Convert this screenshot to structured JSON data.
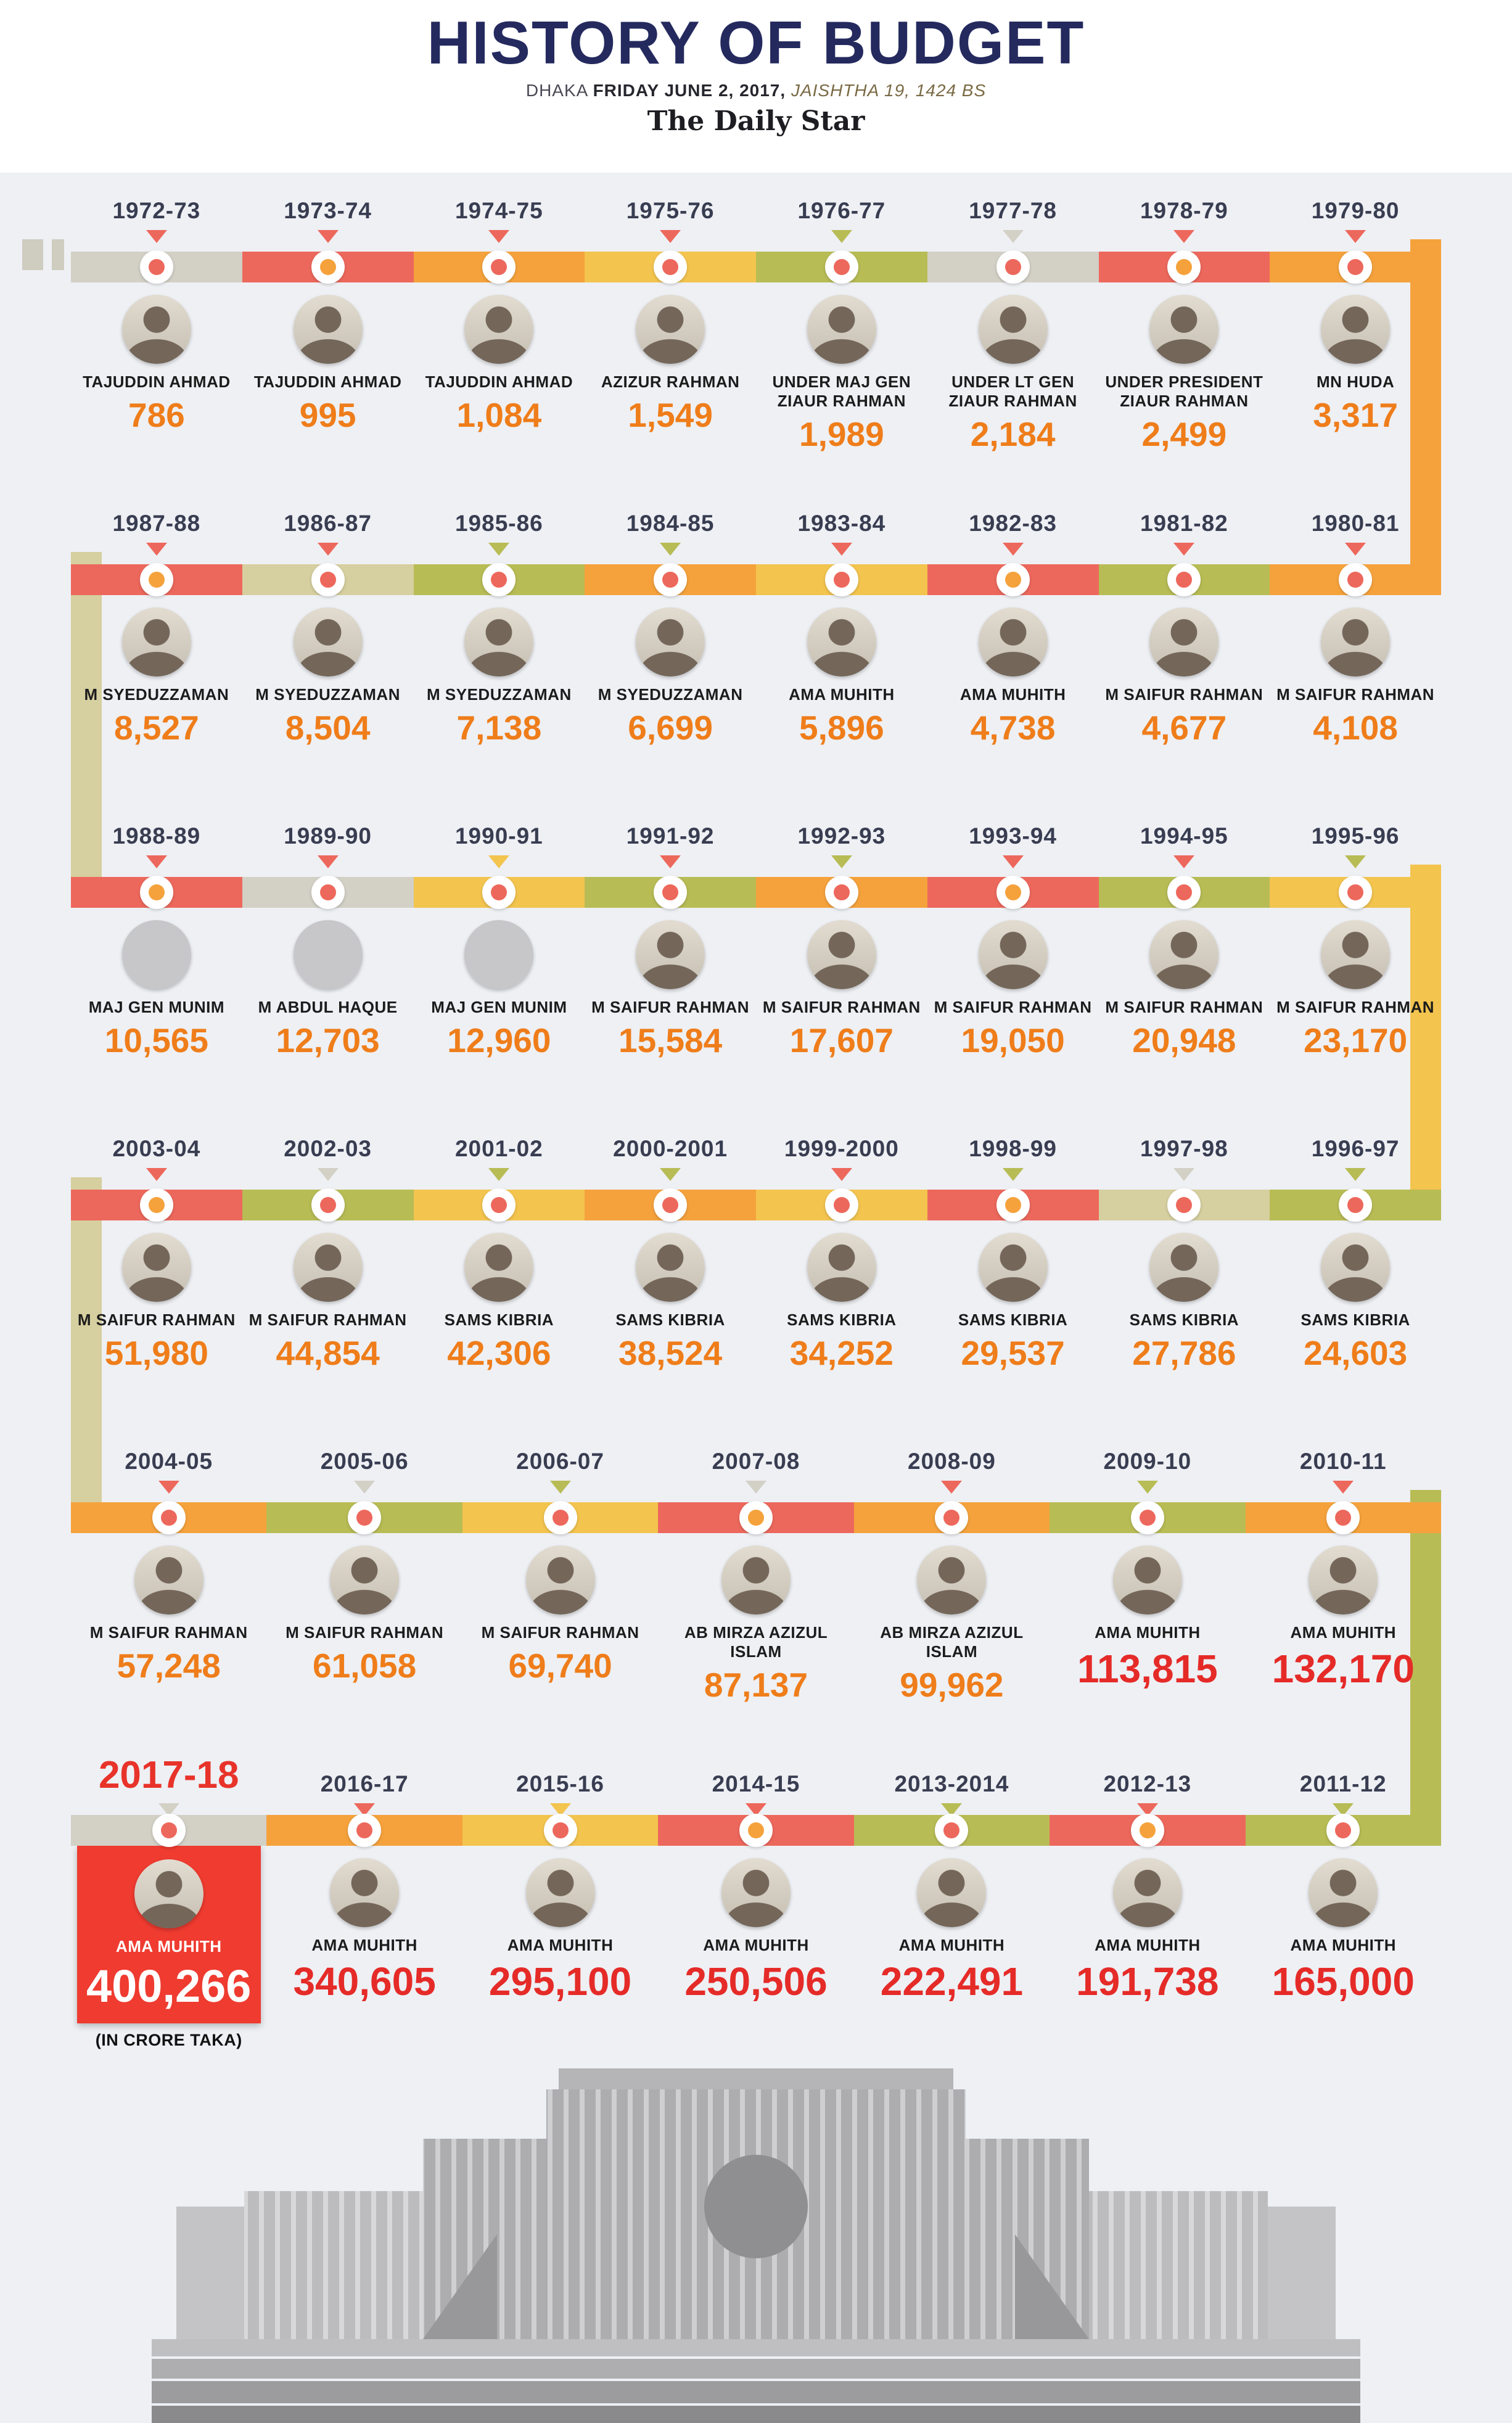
{
  "palette": {
    "red": "#ed685c",
    "orange": "#f5a23c",
    "yellow": "#f3c44e",
    "olive": "#b8bc55",
    "tan": "#d6cf9f",
    "gray": "#d3d0c6",
    "accent_red": "#e8332a",
    "amount_orange": "#ef7d1a",
    "amount_red": "#e52b28",
    "highlight_box": "#ef3b30",
    "title_navy": "#242a5e"
  },
  "header": {
    "title": "HISTORY OF BUDGET",
    "dateline_city": "DHAKA",
    "dateline_date": "FRIDAY JUNE 2, 2017,",
    "dateline_bs": "JAISHTHA 19, 1424 BS",
    "publication": "The Daily Star"
  },
  "connectors": [
    {
      "side": "right",
      "color": "orange"
    },
    {
      "side": "left",
      "color": "tan"
    },
    {
      "side": "right",
      "color": "yellow"
    },
    {
      "side": "left",
      "color": "tan"
    },
    {
      "side": "right",
      "color": "olive"
    }
  ],
  "rows": [
    {
      "direction": "ltr",
      "items": [
        {
          "year": "1972-73",
          "minister": "TAJUDDIN AHMAD",
          "amount": "786",
          "seg": "gray",
          "dot": "red",
          "tri": "red"
        },
        {
          "year": "1973-74",
          "minister": "TAJUDDIN AHMAD",
          "amount": "995",
          "seg": "red",
          "dot": "orange",
          "tri": "red"
        },
        {
          "year": "1974-75",
          "minister": "TAJUDDIN AHMAD",
          "amount": "1,084",
          "seg": "orange",
          "dot": "red",
          "tri": "red"
        },
        {
          "year": "1975-76",
          "minister": "AZIZUR RAHMAN",
          "amount": "1,549",
          "seg": "yellow",
          "dot": "red",
          "tri": "red"
        },
        {
          "year": "1976-77",
          "minister": "UNDER MAJ GEN ZIAUR RAHMAN",
          "amount": "1,989",
          "seg": "olive",
          "dot": "red",
          "tri": "olive"
        },
        {
          "year": "1977-78",
          "minister": "UNDER LT GEN ZIAUR RAHMAN",
          "amount": "2,184",
          "seg": "gray",
          "dot": "red",
          "tri": "gray"
        },
        {
          "year": "1978-79",
          "minister": "UNDER PRESIDENT ZIAUR RAHMAN",
          "amount": "2,499",
          "seg": "red",
          "dot": "orange",
          "tri": "red"
        },
        {
          "year": "1979-80",
          "minister": "MN HUDA",
          "amount": "3,317",
          "seg": "orange",
          "dot": "red",
          "tri": "red"
        }
      ]
    },
    {
      "direction": "rtl",
      "items": [
        {
          "year": "1987-88",
          "minister": "M SYEDUZZAMAN",
          "amount": "8,527",
          "seg": "red",
          "dot": "orange",
          "tri": "red"
        },
        {
          "year": "1986-87",
          "minister": "M SYEDUZZAMAN",
          "amount": "8,504",
          "seg": "tan",
          "dot": "red",
          "tri": "red"
        },
        {
          "year": "1985-86",
          "minister": "M SYEDUZZAMAN",
          "amount": "7,138",
          "seg": "olive",
          "dot": "red",
          "tri": "olive"
        },
        {
          "year": "1984-85",
          "minister": "M SYEDUZZAMAN",
          "amount": "6,699",
          "seg": "orange",
          "dot": "red",
          "tri": "olive"
        },
        {
          "year": "1983-84",
          "minister": "AMA MUHITH",
          "amount": "5,896",
          "seg": "yellow",
          "dot": "red",
          "tri": "red"
        },
        {
          "year": "1982-83",
          "minister": "AMA MUHITH",
          "amount": "4,738",
          "seg": "red",
          "dot": "orange",
          "tri": "red"
        },
        {
          "year": "1981-82",
          "minister": "M SAIFUR RAHMAN",
          "amount": "4,677",
          "seg": "olive",
          "dot": "red",
          "tri": "red"
        },
        {
          "year": "1980-81",
          "minister": "M SAIFUR RAHMAN",
          "amount": "4,108",
          "seg": "orange",
          "dot": "red",
          "tri": "red"
        }
      ]
    },
    {
      "direction": "ltr",
      "items": [
        {
          "year": "1988-89",
          "minister": "MAJ GEN MUNIM",
          "amount": "10,565",
          "photo": false,
          "seg": "red",
          "dot": "orange",
          "tri": "red"
        },
        {
          "year": "1989-90",
          "minister": "M ABDUL HAQUE",
          "amount": "12,703",
          "photo": false,
          "seg": "gray",
          "dot": "red",
          "tri": "red"
        },
        {
          "year": "1990-91",
          "minister": "MAJ GEN MUNIM",
          "amount": "12,960",
          "photo": false,
          "seg": "yellow",
          "dot": "red",
          "tri": "yellow"
        },
        {
          "year": "1991-92",
          "minister": "M SAIFUR RAHMAN",
          "amount": "15,584",
          "seg": "olive",
          "dot": "red",
          "tri": "red"
        },
        {
          "year": "1992-93",
          "minister": "M SAIFUR RAHMAN",
          "amount": "17,607",
          "seg": "orange",
          "dot": "red",
          "tri": "olive"
        },
        {
          "year": "1993-94",
          "minister": "M SAIFUR RAHMAN",
          "amount": "19,050",
          "seg": "red",
          "dot": "orange",
          "tri": "red"
        },
        {
          "year": "1994-95",
          "minister": "M SAIFUR RAHMAN",
          "amount": "20,948",
          "seg": "olive",
          "dot": "red",
          "tri": "red"
        },
        {
          "year": "1995-96",
          "minister": "M SAIFUR RAHMAN",
          "amount": "23,170",
          "seg": "yellow",
          "dot": "red",
          "tri": "olive"
        }
      ]
    },
    {
      "direction": "rtl",
      "items": [
        {
          "year": "2003-04",
          "minister": "M SAIFUR RAHMAN",
          "amount": "51,980",
          "seg": "red",
          "dot": "orange",
          "tri": "red"
        },
        {
          "year": "2002-03",
          "minister": "M SAIFUR RAHMAN",
          "amount": "44,854",
          "seg": "olive",
          "dot": "red",
          "tri": "gray"
        },
        {
          "year": "2001-02",
          "minister": "SAMS KIBRIA",
          "amount": "42,306",
          "seg": "yellow",
          "dot": "red",
          "tri": "olive"
        },
        {
          "year": "2000-2001",
          "minister": "SAMS KIBRIA",
          "amount": "38,524",
          "seg": "orange",
          "dot": "red",
          "tri": "olive"
        },
        {
          "year": "1999-2000",
          "minister": "SAMS KIBRIA",
          "amount": "34,252",
          "seg": "yellow",
          "dot": "red",
          "tri": "red"
        },
        {
          "year": "1998-99",
          "minister": "SAMS KIBRIA",
          "amount": "29,537",
          "seg": "red",
          "dot": "orange",
          "tri": "olive"
        },
        {
          "year": "1997-98",
          "minister": "SAMS KIBRIA",
          "amount": "27,786",
          "seg": "tan",
          "dot": "red",
          "tri": "gray"
        },
        {
          "year": "1996-97",
          "minister": "SAMS KIBRIA",
          "amount": "24,603",
          "seg": "olive",
          "dot": "red",
          "tri": "olive"
        }
      ]
    },
    {
      "direction": "ltr",
      "items": [
        {
          "year": "2004-05",
          "minister": "M SAIFUR RAHMAN",
          "amount": "57,248",
          "seg": "orange",
          "dot": "red",
          "tri": "red"
        },
        {
          "year": "2005-06",
          "minister": "M SAIFUR RAHMAN",
          "amount": "61,058",
          "seg": "olive",
          "dot": "red",
          "tri": "gray"
        },
        {
          "year": "2006-07",
          "minister": "M SAIFUR RAHMAN",
          "amount": "69,740",
          "seg": "yellow",
          "dot": "red",
          "tri": "olive"
        },
        {
          "year": "2007-08",
          "minister": "AB MIRZA AZIZUL ISLAM",
          "amount": "87,137",
          "seg": "red",
          "dot": "orange",
          "tri": "gray"
        },
        {
          "year": "2008-09",
          "minister": "AB MIRZA AZIZUL ISLAM",
          "amount": "99,962",
          "seg": "orange",
          "dot": "red",
          "tri": "red"
        },
        {
          "year": "2009-10",
          "minister": "AMA MUHITH",
          "amount": "113,815",
          "style": "red",
          "seg": "olive",
          "dot": "red",
          "tri": "olive"
        },
        {
          "year": "2010-11",
          "minister": "AMA MUHITH",
          "amount": "132,170",
          "style": "red",
          "seg": "orange",
          "dot": "red",
          "tri": "red"
        }
      ]
    },
    {
      "direction": "rtl",
      "items": [
        {
          "year": "2017-18",
          "minister": "AMA MUHITH",
          "amount": "400,266",
          "hero": true,
          "style": "hero",
          "note": "(IN CRORE TAKA)",
          "seg": "gray",
          "dot": "red",
          "tri": "gray"
        },
        {
          "year": "2016-17",
          "minister": "AMA MUHITH",
          "amount": "340,605",
          "style": "red",
          "seg": "orange",
          "dot": "red",
          "tri": "red"
        },
        {
          "year": "2015-16",
          "minister": "AMA MUHITH",
          "amount": "295,100",
          "style": "red",
          "seg": "yellow",
          "dot": "red",
          "tri": "yellow"
        },
        {
          "year": "2014-15",
          "minister": "AMA MUHITH",
          "amount": "250,506",
          "style": "red",
          "seg": "red",
          "dot": "orange",
          "tri": "red"
        },
        {
          "year": "2013-2014",
          "minister": "AMA MUHITH",
          "amount": "222,491",
          "style": "red",
          "seg": "olive",
          "dot": "red",
          "tri": "olive"
        },
        {
          "year": "2012-13",
          "minister": "AMA MUHITH",
          "amount": "191,738",
          "style": "red",
          "seg": "red",
          "dot": "orange",
          "tri": "red"
        },
        {
          "year": "2011-12",
          "minister": "AMA MUHITH",
          "amount": "165,000",
          "style": "red",
          "seg": "olive",
          "dot": "red",
          "tri": "olive"
        }
      ]
    }
  ],
  "chart_data": {
    "type": "table",
    "title": "HISTORY OF BUDGET",
    "subtitle": "DHAKA FRIDAY JUNE 2, 2017, JAISHTHA 19, 1424 BS",
    "unit": "crore taka",
    "layout": "serpentine-timeline",
    "categories": [
      "1972-73",
      "1973-74",
      "1974-75",
      "1975-76",
      "1976-77",
      "1977-78",
      "1978-79",
      "1979-80",
      "1980-81",
      "1981-82",
      "1982-83",
      "1983-84",
      "1984-85",
      "1985-86",
      "1986-87",
      "1987-88",
      "1988-89",
      "1989-90",
      "1990-91",
      "1991-92",
      "1992-93",
      "1993-94",
      "1994-95",
      "1995-96",
      "1996-97",
      "1997-98",
      "1998-99",
      "1999-2000",
      "2000-2001",
      "2001-02",
      "2002-03",
      "2003-04",
      "2004-05",
      "2005-06",
      "2006-07",
      "2007-08",
      "2008-09",
      "2009-10",
      "2010-11",
      "2011-12",
      "2012-13",
      "2013-2014",
      "2014-15",
      "2015-16",
      "2016-17",
      "2017-18"
    ],
    "series": [
      {
        "name": "National budget (crore taka)",
        "values": [
          786,
          995,
          1084,
          1549,
          1989,
          2184,
          2499,
          3317,
          4108,
          4677,
          4738,
          5896,
          6699,
          7138,
          8504,
          8527,
          10565,
          12703,
          12960,
          15584,
          17607,
          19050,
          20948,
          23170,
          24603,
          27786,
          29537,
          34252,
          38524,
          42306,
          44854,
          51980,
          57248,
          61058,
          69740,
          87137,
          99962,
          113815,
          132170,
          165000,
          191738,
          222491,
          250506,
          295100,
          340605,
          400266
        ]
      }
    ],
    "ministers": [
      "TAJUDDIN AHMAD",
      "TAJUDDIN AHMAD",
      "TAJUDDIN AHMAD",
      "AZIZUR RAHMAN",
      "UNDER MAJ GEN ZIAUR RAHMAN",
      "UNDER LT GEN ZIAUR RAHMAN",
      "UNDER PRESIDENT ZIAUR RAHMAN",
      "MN HUDA",
      "M SAIFUR RAHMAN",
      "M SAIFUR RAHMAN",
      "AMA MUHITH",
      "AMA MUHITH",
      "M SYEDUZZAMAN",
      "M SYEDUZZAMAN",
      "M SYEDUZZAMAN",
      "M SYEDUZZAMAN",
      "MAJ GEN MUNIM",
      "M ABDUL HAQUE",
      "MAJ GEN MUNIM",
      "M SAIFUR RAHMAN",
      "M SAIFUR RAHMAN",
      "M SAIFUR RAHMAN",
      "M SAIFUR RAHMAN",
      "M SAIFUR RAHMAN",
      "SAMS KIBRIA",
      "SAMS KIBRIA",
      "SAMS KIBRIA",
      "SAMS KIBRIA",
      "SAMS KIBRIA",
      "SAMS KIBRIA",
      "M SAIFUR RAHMAN",
      "M SAIFUR RAHMAN",
      "M SAIFUR RAHMAN",
      "M SAIFUR RAHMAN",
      "M SAIFUR RAHMAN",
      "AB MIRZA AZIZUL ISLAM",
      "AB MIRZA AZIZUL ISLAM",
      "AMA MUHITH",
      "AMA MUHITH",
      "AMA MUHITH",
      "AMA MUHITH",
      "AMA MUHITH",
      "AMA MUHITH",
      "AMA MUHITH",
      "AMA MUHITH",
      "AMA MUHITH"
    ],
    "highlight": {
      "category": "2017-18",
      "value": 400266,
      "note": "(IN CRORE TAKA)"
    }
  }
}
